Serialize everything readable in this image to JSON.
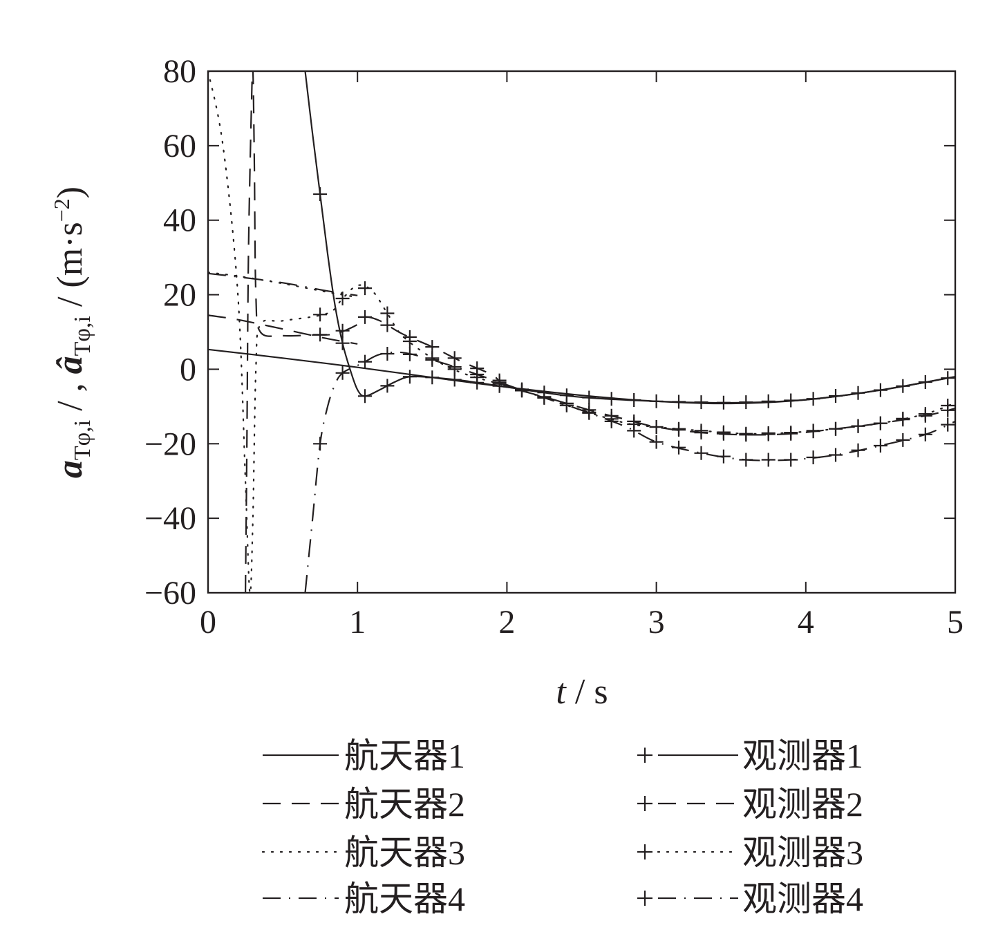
{
  "chart_data": {
    "type": "line",
    "xlabel": {
      "italic": "t",
      "rest": " / s"
    },
    "ylabel": {
      "part1_main": "a",
      "part1_sub": "Tφ,i",
      "sep1": " / , ",
      "part2_main": "â",
      "part2_sub": "Tφ,i",
      "sep2": " / ",
      "unit_main": "(m·s",
      "unit_sup": "−2",
      "unit_close": ")"
    },
    "xlim": [
      0,
      5
    ],
    "ylim": [
      -60,
      80
    ],
    "xticks": [
      0,
      1,
      2,
      3,
      4,
      5
    ],
    "yticks": [
      80,
      60,
      40,
      20,
      0,
      -20,
      -40,
      -60
    ],
    "ytick_labels": [
      "80",
      "60",
      "40",
      "20",
      "0",
      "−20",
      "−40",
      "−60"
    ],
    "grid": false,
    "legend_position": "bottom",
    "series": [
      {
        "name": "航天器1",
        "style": "solid",
        "marker": "none",
        "points": [
          [
            0,
            5.3
          ],
          [
            0.5,
            3
          ],
          [
            1,
            0.5
          ],
          [
            1.5,
            -2.2
          ],
          [
            2,
            -4.8
          ],
          [
            2.5,
            -7
          ],
          [
            3,
            -8.6
          ],
          [
            3.5,
            -9.2
          ],
          [
            4,
            -8.2
          ],
          [
            4.5,
            -5.6
          ],
          [
            5,
            -2
          ]
        ]
      },
      {
        "name": "航天器2",
        "style": "dashed",
        "marker": "none",
        "points": [
          [
            0,
            14.5
          ],
          [
            0.2,
            13.3
          ],
          [
            0.5,
            10.8
          ],
          [
            0.8,
            8.2
          ],
          [
            1,
            6.8
          ]
        ]
      },
      {
        "name": "航天器3",
        "style": "dotted",
        "marker": "none",
        "points": [
          [
            0,
            26
          ],
          [
            0.2,
            25
          ],
          [
            0.5,
            23
          ],
          [
            0.8,
            20.7
          ],
          [
            1,
            19.3
          ]
        ]
      },
      {
        "name": "航天器4",
        "style": "dashdot",
        "marker": "none",
        "points": [
          [
            0,
            25.7
          ],
          [
            0.2,
            24.8
          ],
          [
            0.5,
            23.2
          ],
          [
            0.8,
            21
          ],
          [
            1,
            19.8
          ]
        ]
      },
      {
        "name": "观测器1",
        "style": "solid",
        "marker": "plus",
        "points": [
          [
            0.65,
            80
          ],
          [
            0.7,
            63
          ],
          [
            0.75,
            47
          ],
          [
            0.8,
            31
          ],
          [
            0.85,
            17
          ],
          [
            0.9,
            7
          ],
          [
            0.95,
            0
          ],
          [
            1.0,
            -5.5
          ],
          [
            1.05,
            -7.2
          ],
          [
            1.15,
            -5.5
          ],
          [
            1.25,
            -3.4
          ],
          [
            1.35,
            -2
          ],
          [
            1.5,
            -2.2
          ],
          [
            1.7,
            -3
          ],
          [
            2.0,
            -4.8
          ],
          [
            2.2,
            -6
          ],
          [
            2.5,
            -7.5
          ],
          [
            3,
            -8.6
          ],
          [
            3.5,
            -9
          ],
          [
            4,
            -8.2
          ],
          [
            4.5,
            -5.6
          ],
          [
            5,
            -2
          ]
        ]
      },
      {
        "name": "观测器2",
        "style": "dashed",
        "marker": "plus",
        "points": [
          [
            0.25,
            -60
          ],
          [
            0.26,
            -20
          ],
          [
            0.27,
            30
          ],
          [
            0.29,
            70
          ],
          [
            0.3,
            80
          ],
          [
            0.31,
            55
          ],
          [
            0.32,
            20
          ],
          [
            0.35,
            10
          ],
          [
            0.5,
            9
          ],
          [
            0.7,
            9.2
          ],
          [
            0.85,
            9.5
          ],
          [
            1,
            12
          ],
          [
            1.05,
            14
          ],
          [
            1.15,
            13
          ],
          [
            1.3,
            9.5
          ],
          [
            1.5,
            6
          ],
          [
            1.7,
            2
          ],
          [
            1.9,
            -1.5
          ],
          [
            2.0,
            -4.5
          ],
          [
            2.3,
            -8
          ],
          [
            2.6,
            -11.5
          ],
          [
            2.8,
            -13.5
          ],
          [
            3,
            -15.5
          ],
          [
            3.3,
            -17
          ],
          [
            3.6,
            -17.6
          ],
          [
            3.9,
            -17.3
          ],
          [
            4.2,
            -16
          ],
          [
            4.5,
            -14.5
          ],
          [
            4.8,
            -12.5
          ],
          [
            5,
            -10.5
          ]
        ]
      },
      {
        "name": "观测器3",
        "style": "dotted",
        "marker": "plus",
        "points": [
          [
            0,
            80
          ],
          [
            0.1,
            60
          ],
          [
            0.2,
            20
          ],
          [
            0.25,
            -30
          ],
          [
            0.28,
            -60
          ],
          [
            0.3,
            -40
          ],
          [
            0.32,
            0
          ],
          [
            0.35,
            12
          ],
          [
            0.5,
            13
          ],
          [
            0.8,
            15
          ],
          [
            0.9,
            19
          ],
          [
            1,
            22.5
          ],
          [
            1.1,
            21
          ],
          [
            1.2,
            15
          ],
          [
            1.3,
            9
          ],
          [
            1.5,
            3
          ],
          [
            1.7,
            -1
          ],
          [
            2,
            -4.5
          ],
          [
            2.2,
            -7
          ],
          [
            2.5,
            -11
          ],
          [
            2.8,
            -14.5
          ],
          [
            3,
            -15.5
          ],
          [
            3.3,
            -16.5
          ],
          [
            3.6,
            -17.3
          ],
          [
            3.9,
            -17
          ],
          [
            4.2,
            -16
          ],
          [
            4.5,
            -14.5
          ],
          [
            4.8,
            -12
          ],
          [
            5,
            -9
          ]
        ]
      },
      {
        "name": "观测器4",
        "style": "dashdot",
        "marker": "plus",
        "points": [
          [
            0.65,
            -60
          ],
          [
            0.7,
            -40
          ],
          [
            0.75,
            -20
          ],
          [
            0.8,
            -10
          ],
          [
            0.85,
            -4
          ],
          [
            0.9,
            -1
          ],
          [
            1,
            1
          ],
          [
            1.05,
            2
          ],
          [
            1.15,
            4
          ],
          [
            1.3,
            4.5
          ],
          [
            1.5,
            2.5
          ],
          [
            1.7,
            0
          ],
          [
            2,
            -4.2
          ],
          [
            2.2,
            -7
          ],
          [
            2.5,
            -11
          ],
          [
            2.8,
            -15.5
          ],
          [
            3,
            -19.5
          ],
          [
            3.3,
            -22.5
          ],
          [
            3.6,
            -24.3
          ],
          [
            3.9,
            -24.3
          ],
          [
            4.2,
            -23
          ],
          [
            4.5,
            -20.5
          ],
          [
            4.8,
            -17.5
          ],
          [
            5,
            -14
          ]
        ]
      }
    ]
  }
}
